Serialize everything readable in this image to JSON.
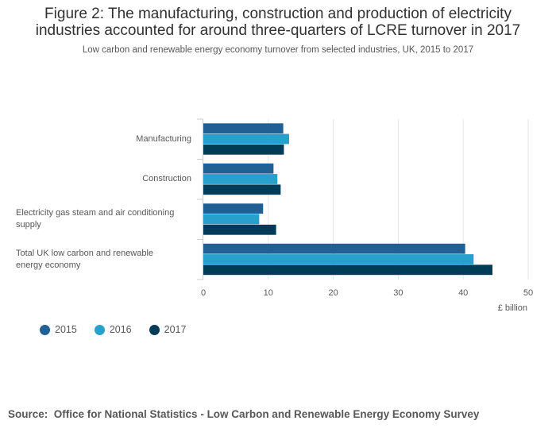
{
  "title_line1": "Figure 2: The manufacturing, construction and production of electricity",
  "title_line2": "industries accounted for around three-quarters of LCRE turnover in 2017",
  "subtitle": "Low carbon and renewable energy economy turnover from selected industries, UK, 2015 to 2017",
  "source_label": "Source:",
  "source_text": "Office for National Statistics - Low Carbon and Renewable Energy Economy Survey",
  "chart_data": {
    "type": "bar",
    "orientation": "horizontal",
    "categories": [
      [
        "Manufacturing"
      ],
      [
        "Construction"
      ],
      [
        "Electricity gas steam and air conditioning",
        "supply"
      ],
      [
        "Total UK low carbon and renewable",
        "energy economy"
      ]
    ],
    "series": [
      {
        "name": "2015",
        "color": "#206095",
        "values": [
          12.3,
          10.8,
          9.2,
          40.3
        ]
      },
      {
        "name": "2016",
        "color": "#27a0cc",
        "values": [
          13.2,
          11.4,
          8.6,
          41.6
        ]
      },
      {
        "name": "2017",
        "color": "#003c57",
        "values": [
          12.4,
          11.9,
          11.2,
          44.5
        ]
      }
    ],
    "xlim": [
      0,
      50
    ],
    "xticks": [
      0,
      10,
      20,
      30,
      40,
      50
    ],
    "xlabel": "£ billion",
    "grid": true,
    "legend_position": "bottom-left"
  }
}
